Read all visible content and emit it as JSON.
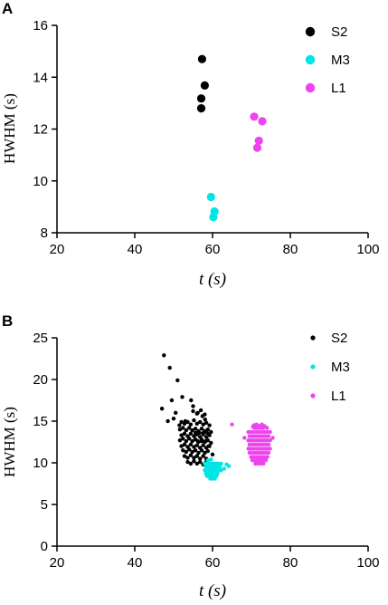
{
  "chart_data": [
    {
      "panel": "A",
      "type": "scatter",
      "xlabel": "t (s)",
      "ylabel": "HWHM (s)",
      "xlim": [
        20,
        100
      ],
      "ylim": [
        8,
        16
      ],
      "xticks": [
        20,
        40,
        60,
        80,
        100
      ],
      "yticks": [
        8,
        10,
        12,
        14,
        16
      ],
      "legend_position": "top-right",
      "series": [
        {
          "name": "S2",
          "color": "#000000",
          "marker": "large",
          "x": [
            57.3,
            58.0,
            57.1,
            57.1
          ],
          "y": [
            14.7,
            13.68,
            13.18,
            12.8
          ]
        },
        {
          "name": "M3",
          "color": "#00e5e5",
          "marker": "large",
          "x": [
            59.6,
            60.5,
            60.2
          ],
          "y": [
            9.38,
            8.82,
            8.6
          ]
        },
        {
          "name": "L1",
          "color": "#ee44ee",
          "marker": "large",
          "x": [
            70.7,
            72.8,
            71.9,
            71.5
          ],
          "y": [
            12.48,
            12.3,
            11.55,
            11.28
          ]
        }
      ]
    },
    {
      "panel": "B",
      "type": "scatter",
      "xlabel": "t (s)",
      "ylabel": "HWHM (s)",
      "xlim": [
        20,
        100
      ],
      "ylim": [
        0,
        25
      ],
      "xticks": [
        20,
        40,
        60,
        80,
        100
      ],
      "yticks": [
        0,
        5,
        10,
        15,
        20,
        25
      ],
      "legend_position": "top-right",
      "series": [
        {
          "name": "S2",
          "color": "#000000",
          "marker": "small",
          "x": [
            47.5,
            49.0,
            47.0,
            50.5,
            51.0,
            49.5,
            52.2,
            54.5,
            53.0,
            50.0,
            51.5,
            48.5,
            58.0,
            59.0,
            60.0,
            61.0,
            55.0,
            56.2,
            57.4,
            58.1,
            52.0,
            52.8,
            53.6,
            54.4,
            55.2,
            56.0,
            56.8,
            57.6,
            58.4,
            59.2,
            51.6,
            52.4,
            53.2,
            54.0,
            54.8,
            55.6,
            56.4,
            57.2,
            58.0,
            58.8,
            59.6,
            52.0,
            52.8,
            53.6,
            54.4,
            55.2,
            56.0,
            56.8,
            57.6,
            58.4,
            59.2,
            51.6,
            52.4,
            53.2,
            54.0,
            54.8,
            55.6,
            56.4,
            57.2,
            58.0,
            58.8,
            59.6,
            52.0,
            52.8,
            53.6,
            54.4,
            55.2,
            56.0,
            56.8,
            57.6,
            58.4,
            59.2,
            52.4,
            53.2,
            54.0,
            54.8,
            55.6,
            56.4,
            57.2,
            58.0,
            58.8,
            52.8,
            53.6,
            54.4,
            55.2,
            56.0,
            56.8,
            57.6,
            58.4,
            53.6,
            54.4,
            55.2,
            56.0,
            56.8,
            57.6,
            58.4,
            59.6,
            55.0,
            56.0,
            57.0,
            58.0,
            55.6,
            56.6,
            57.6,
            58.6,
            56.2,
            57.2,
            58.2
          ],
          "y": [
            22.9,
            21.4,
            16.5,
            16.0,
            19.9,
            17.5,
            17.9,
            17.5,
            15.0,
            15.3,
            14.5,
            15.0,
            12.5,
            12.0,
            11.0,
            9.7,
            16.8,
            16.0,
            15.6,
            15.2,
            14.9,
            14.7,
            14.9,
            14.6,
            15.1,
            14.7,
            14.9,
            14.6,
            14.8,
            14.5,
            14.0,
            14.2,
            13.9,
            14.2,
            13.9,
            14.1,
            13.8,
            14.1,
            13.8,
            14.0,
            13.7,
            13.3,
            13.5,
            13.2,
            13.5,
            13.2,
            13.4,
            13.1,
            13.4,
            13.1,
            13.3,
            12.7,
            12.9,
            12.6,
            12.9,
            12.6,
            12.8,
            12.5,
            12.8,
            12.5,
            12.7,
            12.4,
            12.0,
            12.2,
            11.9,
            12.2,
            11.9,
            12.1,
            11.8,
            12.1,
            11.8,
            12.0,
            11.5,
            11.3,
            11.6,
            11.3,
            11.5,
            11.2,
            11.5,
            11.2,
            11.4,
            10.8,
            10.6,
            10.9,
            10.6,
            10.8,
            10.5,
            10.8,
            10.5,
            10.1,
            9.9,
            10.2,
            9.9,
            10.1,
            9.8,
            10.1,
            9.7,
            16.2,
            15.9,
            16.3,
            15.8,
            13.6,
            13.6,
            13.6,
            13.6,
            12.6,
            12.6,
            12.6
          ]
        },
        {
          "name": "M3",
          "color": "#00e5e5",
          "marker": "small",
          "x": [
            58.0,
            58.6,
            59.2,
            59.8,
            60.4,
            61.0,
            61.6,
            62.2,
            58.3,
            58.9,
            59.5,
            60.1,
            60.7,
            61.3,
            61.9,
            58.0,
            58.6,
            59.2,
            59.8,
            60.4,
            61.0,
            61.6,
            62.2,
            58.3,
            58.9,
            59.5,
            60.1,
            60.7,
            61.3,
            58.6,
            59.2,
            59.8,
            60.4,
            61.0,
            59.4,
            60.0,
            60.6,
            58.8,
            59.6,
            63.6,
            64.2,
            63.0
          ],
          "y": [
            9.9,
            9.9,
            9.9,
            9.9,
            9.9,
            9.9,
            9.9,
            9.9,
            9.5,
            9.5,
            9.5,
            9.5,
            9.5,
            9.5,
            9.5,
            9.1,
            9.1,
            9.1,
            9.1,
            9.1,
            9.1,
            9.1,
            9.1,
            8.7,
            8.7,
            8.7,
            8.7,
            8.7,
            8.7,
            8.4,
            8.4,
            8.4,
            8.4,
            8.4,
            8.1,
            8.1,
            8.1,
            10.3,
            10.4,
            9.8,
            9.6,
            9.3
          ]
        },
        {
          "name": "L1",
          "color": "#ee44ee",
          "marker": "small",
          "x": [
            69.2,
            69.9,
            70.6,
            71.3,
            72.0,
            72.7,
            73.4,
            74.1,
            74.8,
            69.5,
            70.2,
            70.9,
            71.6,
            72.3,
            73.0,
            73.7,
            74.4,
            69.2,
            69.9,
            70.6,
            71.3,
            72.0,
            72.7,
            73.4,
            74.1,
            74.8,
            69.5,
            70.2,
            70.9,
            71.6,
            72.3,
            73.0,
            73.7,
            74.4,
            69.2,
            69.9,
            70.6,
            71.3,
            72.0,
            72.7,
            73.4,
            74.1,
            74.8,
            69.5,
            70.2,
            70.9,
            71.6,
            72.3,
            73.0,
            73.7,
            74.4,
            69.9,
            70.6,
            71.3,
            72.0,
            72.7,
            73.4,
            74.1,
            70.2,
            70.9,
            71.6,
            72.3,
            73.0,
            73.7,
            70.9,
            71.6,
            72.3,
            73.0,
            70.6,
            71.3,
            72.0,
            72.7,
            73.4,
            71.0,
            71.7,
            72.4,
            73.1,
            71.3,
            72.0,
            72.7,
            70.4,
            71.6,
            72.8,
            74.0,
            75.5,
            65.0,
            68.2
          ],
          "y": [
            13.7,
            13.7,
            13.7,
            13.7,
            13.7,
            13.7,
            13.7,
            13.7,
            13.7,
            13.2,
            13.2,
            13.2,
            13.2,
            13.2,
            13.2,
            13.2,
            13.2,
            12.7,
            12.7,
            12.7,
            12.7,
            12.7,
            12.7,
            12.7,
            12.7,
            12.7,
            12.2,
            12.2,
            12.2,
            12.2,
            12.2,
            12.2,
            12.2,
            12.2,
            11.7,
            11.7,
            11.7,
            11.7,
            11.7,
            11.7,
            11.7,
            11.7,
            11.7,
            11.2,
            11.2,
            11.2,
            11.2,
            11.2,
            11.2,
            11.2,
            11.2,
            10.7,
            10.7,
            10.7,
            10.7,
            10.7,
            10.7,
            10.7,
            10.3,
            10.3,
            10.3,
            10.3,
            10.3,
            10.3,
            14.2,
            14.2,
            14.2,
            14.2,
            14.5,
            14.6,
            14.4,
            14.6,
            14.4,
            9.9,
            9.9,
            9.9,
            9.9,
            10.0,
            10.1,
            10.0,
            14.3,
            14.3,
            14.4,
            14.2,
            13.0,
            14.6,
            13.0
          ]
        }
      ]
    }
  ]
}
